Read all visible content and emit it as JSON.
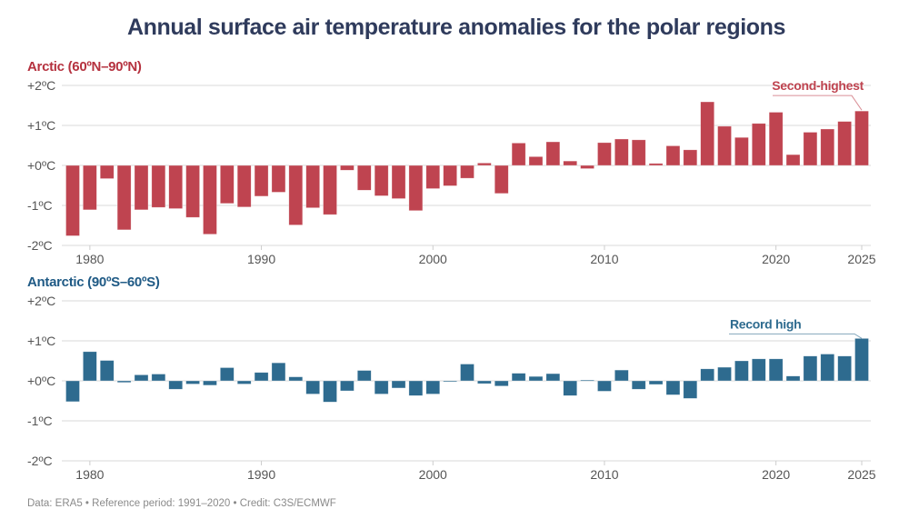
{
  "title": "Annual surface air temperature anomalies for the polar regions",
  "footer": "Data: ERA5 • Reference period: 1991–2020 • Credit: C3S/ECMWF",
  "chart_data": [
    {
      "type": "bar",
      "title": "Arctic (60ºN–90ºN)",
      "color": "#bf4450",
      "title_color": "#b5323f",
      "x": [
        1979,
        1980,
        1981,
        1982,
        1983,
        1984,
        1985,
        1986,
        1987,
        1988,
        1989,
        1990,
        1991,
        1992,
        1993,
        1994,
        1995,
        1996,
        1997,
        1998,
        1999,
        2000,
        2001,
        2002,
        2003,
        2004,
        2005,
        2006,
        2007,
        2008,
        2009,
        2010,
        2011,
        2012,
        2013,
        2014,
        2015,
        2016,
        2017,
        2018,
        2019,
        2020,
        2021,
        2022,
        2023,
        2024,
        2025
      ],
      "values": [
        -1.76,
        -1.11,
        -0.33,
        -1.61,
        -1.11,
        -1.05,
        -1.08,
        -1.3,
        -1.72,
        -0.95,
        -1.04,
        -0.77,
        -0.67,
        -1.49,
        -1.06,
        -1.23,
        -0.12,
        -0.62,
        -0.76,
        -0.83,
        -1.13,
        -0.58,
        -0.51,
        -0.32,
        0.06,
        -0.7,
        0.56,
        0.22,
        0.59,
        0.11,
        -0.08,
        0.57,
        0.66,
        0.64,
        0.05,
        0.49,
        0.39,
        1.59,
        0.98,
        0.7,
        1.05,
        1.33,
        0.27,
        0.83,
        0.91,
        1.1,
        1.36
      ],
      "ylim": [
        -2,
        2
      ],
      "yticks": [
        {
          "value": 2,
          "label": "+2ºC"
        },
        {
          "value": 1,
          "label": "+1ºC"
        },
        {
          "value": 0,
          "label": "+0ºC"
        },
        {
          "value": -1,
          "label": "-1ºC"
        },
        {
          "value": -2,
          "label": "-2ºC"
        }
      ],
      "xticks": [
        1980,
        1990,
        2000,
        2010,
        2020,
        2025
      ],
      "annotation": {
        "year": 2025,
        "text": "Second-highest"
      },
      "grid": true
    },
    {
      "type": "bar",
      "title": "Antarctic (90ºS–60ºS)",
      "color": "#2e6b8f",
      "title_color": "#1f5a85",
      "x": [
        1979,
        1980,
        1981,
        1982,
        1983,
        1984,
        1985,
        1986,
        1987,
        1988,
        1989,
        1990,
        1991,
        1992,
        1993,
        1994,
        1995,
        1996,
        1997,
        1998,
        1999,
        2000,
        2001,
        2002,
        2003,
        2004,
        2005,
        2006,
        2007,
        2008,
        2009,
        2010,
        2011,
        2012,
        2013,
        2014,
        2015,
        2016,
        2017,
        2018,
        2019,
        2020,
        2021,
        2022,
        2023,
        2024,
        2025
      ],
      "values": [
        -0.52,
        0.73,
        0.51,
        -0.04,
        0.15,
        0.17,
        -0.21,
        -0.08,
        -0.11,
        0.33,
        -0.08,
        0.21,
        0.45,
        0.1,
        -0.33,
        -0.53,
        -0.25,
        0.26,
        -0.33,
        -0.18,
        -0.37,
        -0.33,
        -0.02,
        0.42,
        -0.07,
        -0.13,
        0.19,
        0.11,
        0.18,
        -0.37,
        0.02,
        -0.26,
        0.27,
        -0.21,
        -0.09,
        -0.35,
        -0.44,
        0.3,
        0.34,
        0.5,
        0.55,
        0.55,
        0.12,
        0.62,
        0.67,
        0.62,
        1.06
      ],
      "ylim": [
        -2,
        2
      ],
      "yticks": [
        {
          "value": 2,
          "label": "+2ºC"
        },
        {
          "value": 1,
          "label": "+1ºC"
        },
        {
          "value": 0,
          "label": "+0ºC"
        },
        {
          "value": -1,
          "label": "-1ºC"
        },
        {
          "value": -2,
          "label": "-2ºC"
        }
      ],
      "xticks": [
        1980,
        1990,
        2000,
        2010,
        2020,
        2025
      ],
      "annotation": {
        "year": 2025,
        "text": "Record high"
      },
      "grid": true
    }
  ]
}
